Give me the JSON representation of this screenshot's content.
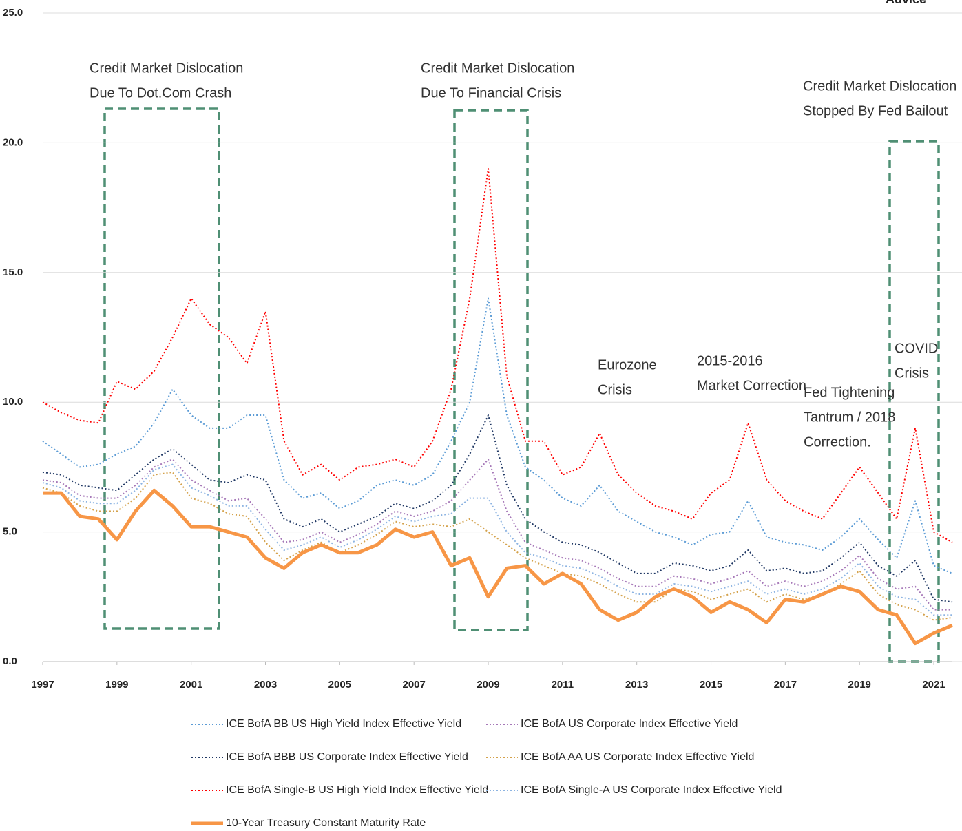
{
  "chart_data": {
    "type": "line",
    "logo_text": "Advice",
    "xlim": [
      1997,
      2021.5
    ],
    "xticks": [
      1997,
      1999,
      2001,
      2003,
      2005,
      2007,
      2009,
      2011,
      2013,
      2015,
      2017,
      2019,
      2021
    ],
    "ylim": [
      0,
      25
    ],
    "yticks": [
      {
        "value": 0,
        "label": "0.0"
      },
      {
        "value": 5,
        "label": "5.0"
      },
      {
        "value": 10,
        "label": "10.0"
      },
      {
        "value": 15,
        "label": "15.0"
      },
      {
        "value": 20,
        "label": "20.0"
      },
      {
        "value": 25,
        "label": "25.0"
      }
    ],
    "grid": true,
    "legend": "bottom",
    "annotations": [
      {
        "lines": [
          "Credit Market Dislocation",
          "Due To Dot.Com Crash"
        ]
      },
      {
        "lines": [
          "Credit Market Dislocation",
          "Due To Financial Crisis"
        ]
      },
      {
        "lines": [
          "Credit Market Dislocation",
          "Stopped By Fed Bailout"
        ]
      },
      {
        "lines": [
          "Eurozone",
          "Crisis"
        ]
      },
      {
        "lines": [
          "2015-2016",
          "Market Correction"
        ]
      },
      {
        "lines": [
          "Fed Tightening",
          "Tantrum / 2018",
          "Correction."
        ]
      },
      {
        "lines": [
          "COVID",
          "Crisis"
        ]
      }
    ],
    "x": [
      1997,
      1997.5,
      1998,
      1998.5,
      1999,
      1999.5,
      2000,
      2000.5,
      2001,
      2001.5,
      2002,
      2002.5,
      2003,
      2003.5,
      2004,
      2004.5,
      2005,
      2005.5,
      2006,
      2006.5,
      2007,
      2007.5,
      2008,
      2008.5,
      2009,
      2009.5,
      2010,
      2010.5,
      2011,
      2011.5,
      2012,
      2012.5,
      2013,
      2013.5,
      2014,
      2014.5,
      2015,
      2015.5,
      2016,
      2016.5,
      2017,
      2017.5,
      2018,
      2018.5,
      2019,
      2019.5,
      2020,
      2020.5,
      2021,
      2021.5
    ],
    "series": [
      {
        "name": "ICE BofA BB US High Yield Index Effective Yield",
        "color": "#5b9bd5",
        "style": "dotted",
        "values": [
          8.5,
          8.0,
          7.5,
          7.6,
          8.0,
          8.3,
          9.2,
          10.5,
          9.5,
          9.0,
          9.0,
          9.5,
          9.5,
          7.0,
          6.3,
          6.5,
          5.9,
          6.2,
          6.8,
          7.0,
          6.8,
          7.2,
          8.5,
          10.0,
          14.0,
          9.5,
          7.5,
          7.0,
          6.3,
          6.0,
          6.8,
          5.8,
          5.4,
          5.0,
          4.8,
          4.5,
          4.9,
          5.0,
          6.2,
          4.8,
          4.6,
          4.5,
          4.3,
          4.8,
          5.5,
          4.7,
          4.0,
          6.2,
          3.7,
          3.4
        ]
      },
      {
        "name": "ICE BofA US Corporate Index Effective Yield",
        "color": "#a678b8",
        "style": "dotted",
        "values": [
          7.0,
          6.9,
          6.4,
          6.3,
          6.3,
          6.8,
          7.5,
          7.8,
          7.0,
          6.6,
          6.2,
          6.3,
          5.5,
          4.6,
          4.7,
          5.0,
          4.6,
          4.9,
          5.3,
          5.8,
          5.6,
          5.8,
          6.2,
          7.0,
          7.8,
          5.8,
          4.6,
          4.3,
          4.0,
          3.9,
          3.6,
          3.2,
          2.9,
          2.9,
          3.3,
          3.2,
          3.0,
          3.2,
          3.5,
          2.9,
          3.1,
          2.9,
          3.1,
          3.5,
          4.1,
          3.2,
          2.8,
          2.9,
          2.0,
          2.0
        ]
      },
      {
        "name": "ICE BofA BBB US Corporate Index Effective Yield",
        "color": "#203864",
        "style": "dotted",
        "values": [
          7.3,
          7.2,
          6.8,
          6.7,
          6.6,
          7.2,
          7.8,
          8.2,
          7.6,
          7.0,
          6.9,
          7.2,
          7.0,
          5.5,
          5.2,
          5.5,
          5.0,
          5.3,
          5.6,
          6.1,
          5.9,
          6.2,
          6.8,
          8.0,
          9.5,
          6.8,
          5.5,
          5.0,
          4.6,
          4.5,
          4.2,
          3.8,
          3.4,
          3.4,
          3.8,
          3.7,
          3.5,
          3.7,
          4.3,
          3.5,
          3.6,
          3.4,
          3.5,
          4.0,
          4.6,
          3.7,
          3.3,
          3.9,
          2.4,
          2.3
        ]
      },
      {
        "name": "ICE BofA AA US Corporate Index Effective Yield",
        "color": "#d4a24c",
        "style": "dotted",
        "values": [
          6.7,
          6.5,
          6.0,
          5.8,
          5.8,
          6.3,
          7.2,
          7.3,
          6.3,
          6.1,
          5.7,
          5.6,
          4.6,
          3.9,
          4.3,
          4.6,
          4.2,
          4.5,
          4.9,
          5.4,
          5.2,
          5.3,
          5.2,
          5.5,
          5.0,
          4.5,
          4.0,
          3.7,
          3.4,
          3.3,
          3.0,
          2.6,
          2.3,
          2.3,
          2.8,
          2.7,
          2.4,
          2.6,
          2.8,
          2.3,
          2.6,
          2.4,
          2.6,
          3.0,
          3.5,
          2.6,
          2.2,
          2.0,
          1.6,
          1.7
        ]
      },
      {
        "name": "ICE BofA Single-B US High Yield Index Effective Yield",
        "color": "#ff0000",
        "style": "dotted",
        "values": [
          10.0,
          9.6,
          9.3,
          9.2,
          10.8,
          10.5,
          11.2,
          12.5,
          14.0,
          13.0,
          12.5,
          11.5,
          13.5,
          8.5,
          7.2,
          7.6,
          7.0,
          7.5,
          7.6,
          7.8,
          7.5,
          8.5,
          10.5,
          14.0,
          19.0,
          11.0,
          8.5,
          8.5,
          7.2,
          7.5,
          8.8,
          7.2,
          6.5,
          6.0,
          5.8,
          5.5,
          6.5,
          7.0,
          9.2,
          7.0,
          6.2,
          5.8,
          5.5,
          6.5,
          7.5,
          6.5,
          5.5,
          9.0,
          5.0,
          4.6
        ]
      },
      {
        "name": "ICE BofA Single-A US Corporate Index Effective Yield",
        "color": "#8db4e2",
        "style": "dotted",
        "values": [
          6.9,
          6.7,
          6.2,
          6.1,
          6.1,
          6.6,
          7.4,
          7.6,
          6.7,
          6.4,
          6.0,
          6.0,
          5.1,
          4.3,
          4.5,
          4.8,
          4.4,
          4.7,
          5.1,
          5.6,
          5.4,
          5.6,
          5.7,
          6.3,
          6.3,
          5.0,
          4.2,
          4.0,
          3.7,
          3.6,
          3.3,
          2.9,
          2.6,
          2.6,
          3.0,
          2.9,
          2.7,
          2.9,
          3.1,
          2.6,
          2.8,
          2.6,
          2.8,
          3.2,
          3.8,
          2.9,
          2.5,
          2.4,
          1.8,
          1.8
        ]
      },
      {
        "name": "10-Year Treasury Constant Maturity Rate",
        "color": "#f79646",
        "style": "solid",
        "values": [
          6.5,
          6.5,
          5.6,
          5.5,
          4.7,
          5.8,
          6.6,
          6.0,
          5.2,
          5.2,
          5.0,
          4.8,
          4.0,
          3.6,
          4.2,
          4.5,
          4.2,
          4.2,
          4.5,
          5.1,
          4.8,
          5.0,
          3.7,
          4.0,
          2.5,
          3.6,
          3.7,
          3.0,
          3.4,
          3.0,
          2.0,
          1.6,
          1.9,
          2.5,
          2.8,
          2.5,
          1.9,
          2.3,
          2.0,
          1.5,
          2.4,
          2.3,
          2.6,
          2.9,
          2.7,
          2.0,
          1.8,
          0.7,
          1.1,
          1.4
        ]
      }
    ]
  }
}
